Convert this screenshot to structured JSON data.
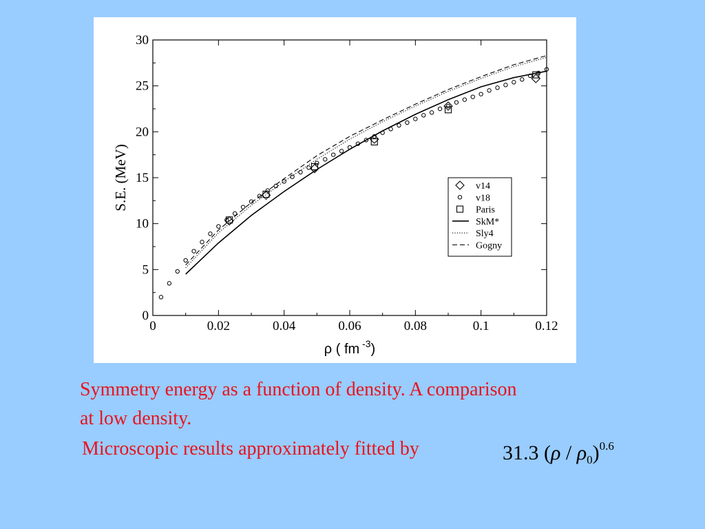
{
  "chart_data": {
    "type": "scatter",
    "xlabel": "ρ ( fm",
    "xlabel_exponent": "-3",
    "xlabel_close": ")",
    "ylabel": "S.E. (MeV)",
    "xlim": [
      0,
      0.12
    ],
    "ylim": [
      0,
      30
    ],
    "x_ticks": [
      0,
      0.02,
      0.04,
      0.06,
      0.08,
      0.1,
      0.12
    ],
    "x_tick_labels": [
      "0",
      "0.02",
      "0.04",
      "0.06",
      "0.08",
      "0.1",
      "0.12"
    ],
    "y_ticks": [
      0,
      5,
      10,
      15,
      20,
      25,
      30
    ],
    "y_tick_labels": [
      "0",
      "5",
      "10",
      "15",
      "20",
      "25",
      "30"
    ],
    "grid": false,
    "legend_position": "right-middle",
    "series": [
      {
        "name": "v14",
        "style": "diamond-marker",
        "x": [
          0.0233,
          0.0345,
          0.0493,
          0.0675,
          0.09,
          0.1167
        ],
        "y": [
          10.3,
          13.1,
          16.0,
          19.2,
          22.8,
          25.8
        ]
      },
      {
        "name": "v18",
        "style": "circle-marker",
        "x": [
          0.0025,
          0.005,
          0.0075,
          0.01,
          0.0125,
          0.015,
          0.0175,
          0.02,
          0.0225,
          0.025,
          0.0275,
          0.03,
          0.0325,
          0.035,
          0.0375,
          0.04,
          0.0425,
          0.045,
          0.0475,
          0.05,
          0.0525,
          0.055,
          0.0575,
          0.06,
          0.0625,
          0.065,
          0.0675,
          0.07,
          0.0725,
          0.075,
          0.0775,
          0.08,
          0.0825,
          0.085,
          0.0875,
          0.09,
          0.0925,
          0.095,
          0.0975,
          0.1,
          0.1025,
          0.105,
          0.1075,
          0.11,
          0.1125,
          0.115,
          0.1175,
          0.12
        ],
        "y": [
          2.0,
          3.5,
          4.8,
          6.0,
          7.0,
          8.0,
          8.9,
          9.7,
          10.4,
          11.1,
          11.8,
          12.4,
          13.0,
          13.6,
          14.1,
          14.6,
          15.1,
          15.6,
          16.1,
          16.6,
          17.0,
          17.5,
          17.9,
          18.3,
          18.7,
          19.1,
          19.5,
          19.9,
          20.3,
          20.7,
          21.0,
          21.4,
          21.8,
          22.1,
          22.5,
          22.8,
          23.2,
          23.5,
          23.8,
          24.1,
          24.5,
          24.8,
          25.1,
          25.4,
          25.7,
          26.1,
          26.4,
          26.8
        ]
      },
      {
        "name": "Paris",
        "style": "square-marker",
        "x": [
          0.0233,
          0.0345,
          0.0493,
          0.0675,
          0.09,
          0.1167
        ],
        "y": [
          10.4,
          13.2,
          16.2,
          18.9,
          22.4,
          26.2
        ]
      },
      {
        "name": "SkM*",
        "style": "solid-line",
        "x": [
          0.01,
          0.02,
          0.03,
          0.04,
          0.05,
          0.06,
          0.07,
          0.08,
          0.09,
          0.1,
          0.11,
          0.12
        ],
        "y": [
          4.5,
          7.9,
          10.9,
          13.5,
          15.9,
          18.1,
          20.1,
          21.9,
          23.5,
          24.9,
          25.9,
          26.6
        ]
      },
      {
        "name": "Sly4",
        "style": "dotted-line",
        "x": [
          0.01,
          0.02,
          0.03,
          0.04,
          0.05,
          0.06,
          0.07,
          0.08,
          0.09,
          0.1,
          0.11,
          0.12
        ],
        "y": [
          5.2,
          9.0,
          12.0,
          14.6,
          17.0,
          19.2,
          21.1,
          22.8,
          24.4,
          25.8,
          27.1,
          28.1
        ]
      },
      {
        "name": "Gogny",
        "style": "dashed-line",
        "x": [
          0.01,
          0.02,
          0.03,
          0.04,
          0.05,
          0.06,
          0.07,
          0.08,
          0.09,
          0.1,
          0.11,
          0.12
        ],
        "y": [
          5.5,
          9.3,
          12.3,
          14.9,
          17.4,
          19.5,
          21.3,
          23.0,
          24.6,
          26.0,
          27.3,
          28.3
        ]
      }
    ]
  },
  "caption": {
    "line1": "Symmetry energy as a function of density. A comparison",
    "line2": "at low density.",
    "line3": "Microscopic results approximately fitted by"
  },
  "formula": {
    "coefficient": "31.3",
    "open_paren": "(",
    "rho": "ρ",
    "slash": "/",
    "rho0": "ρ",
    "subscript": "0",
    "close_paren": ")",
    "exponent": "0.6"
  },
  "colors": {
    "background": "#99ccff",
    "panel": "#ffffff",
    "caption": "#e8141e",
    "ink": "#000000"
  }
}
